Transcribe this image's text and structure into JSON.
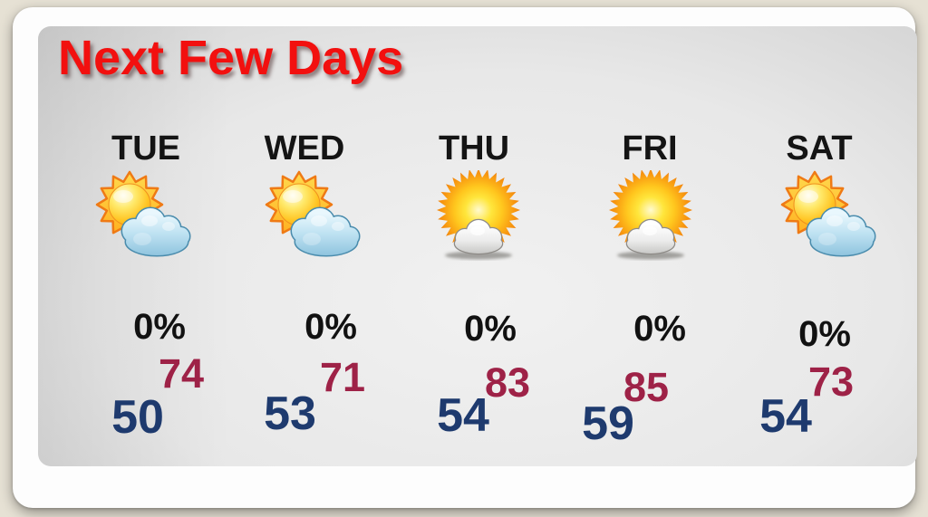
{
  "slide": {
    "title": "Next Few Days"
  },
  "forecast": {
    "days": [
      {
        "label": "TUE",
        "icon": "sun-behind-cloud",
        "precip": "0%",
        "high": "74",
        "low": "50"
      },
      {
        "label": "WED",
        "icon": "sun-behind-cloud",
        "precip": "0%",
        "high": "71",
        "low": "53"
      },
      {
        "label": "THU",
        "icon": "sunny-with-small-cloud",
        "precip": "0%",
        "high": "83",
        "low": "54"
      },
      {
        "label": "FRI",
        "icon": "sunny-with-small-cloud",
        "precip": "0%",
        "high": "85",
        "low": "59"
      },
      {
        "label": "SAT",
        "icon": "sun-behind-cloud",
        "precip": "0%",
        "high": "73",
        "low": "54"
      }
    ]
  },
  "colors": {
    "title_red": "#f2100f",
    "high_temp": "#9e2247",
    "low_temp": "#1e3a6e",
    "day_and_percent_text": "#141414",
    "outer_background": "#e6e1d4",
    "slide_background": "#fdfdfd",
    "panel_gray_edge": "#9b9b9b",
    "panel_gray_center": "#f1f1f1"
  },
  "chart_data": {
    "type": "table",
    "title": "Next Few Days",
    "categories": [
      "TUE",
      "WED",
      "THU",
      "FRI",
      "SAT"
    ],
    "series": [
      {
        "name": "Precipitation chance",
        "values": [
          "0%",
          "0%",
          "0%",
          "0%",
          "0%"
        ]
      },
      {
        "name": "High (red)",
        "values": [
          74,
          71,
          83,
          85,
          73
        ]
      },
      {
        "name": "Low (blue)",
        "values": [
          50,
          53,
          54,
          59,
          54
        ]
      },
      {
        "name": "Condition icon",
        "values": [
          "partly cloudy",
          "partly cloudy",
          "mostly sunny",
          "mostly sunny",
          "partly cloudy"
        ]
      }
    ]
  }
}
